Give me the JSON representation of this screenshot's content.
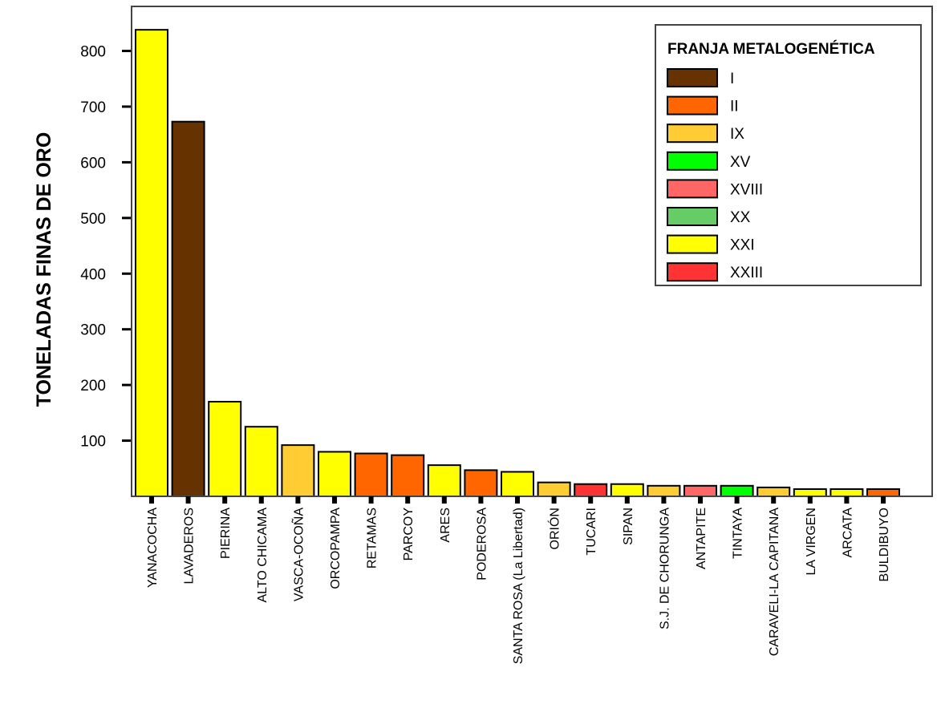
{
  "chart_data": {
    "type": "bar",
    "ylabel": "TONELADAS FINAS DE ORO",
    "xlabel": "",
    "ylim": [
      0,
      880
    ],
    "yticks": [
      100,
      200,
      300,
      400,
      500,
      600,
      700,
      800
    ],
    "grid": false,
    "legend": {
      "title": "FRANJA METALOGENÉTICA",
      "placement": "top-right",
      "entries": [
        {
          "name": "I",
          "color": "#663300"
        },
        {
          "name": "II",
          "color": "#ff6600"
        },
        {
          "name": "IX",
          "color": "#ffcc33"
        },
        {
          "name": "XV",
          "color": "#00ff00"
        },
        {
          "name": "XVIII",
          "color": "#ff6666"
        },
        {
          "name": "XX",
          "color": "#66cc66"
        },
        {
          "name": "XXI",
          "color": "#ffff00"
        },
        {
          "name": "XXIII",
          "color": "#ff3333"
        }
      ]
    },
    "categories": [
      "YANACOCHA",
      "LAVADEROS",
      "PIERINA",
      "ALTO CHICAMA",
      "VASCA-OCOÑA",
      "ORCOPAMPA",
      "RETAMAS",
      "PARCOY",
      "ARES",
      "PODEROSA",
      "SANTA ROSA (La Libertad)",
      "ORIÓN",
      "TUCARI",
      "SIPAN",
      "S.J. DE CHORUNGA",
      "ANTAPITE",
      "TINTAYA",
      "CARAVELI-LA CAPITANA",
      "LA VIRGEN",
      "ARCATA",
      "BULDIBUYO"
    ],
    "values": [
      838,
      673,
      170,
      125,
      92,
      80,
      77,
      74,
      56,
      47,
      44,
      25,
      22,
      22,
      19,
      19,
      19,
      16,
      13,
      13,
      13
    ],
    "franja": [
      "XXI",
      "I",
      "XXI",
      "XXI",
      "IX",
      "XXI",
      "II",
      "II",
      "XXI",
      "II",
      "XXI",
      "IX",
      "XXIII",
      "XXI",
      "IX",
      "XVIII",
      "XV",
      "IX",
      "XXI",
      "XXI",
      "II"
    ]
  }
}
